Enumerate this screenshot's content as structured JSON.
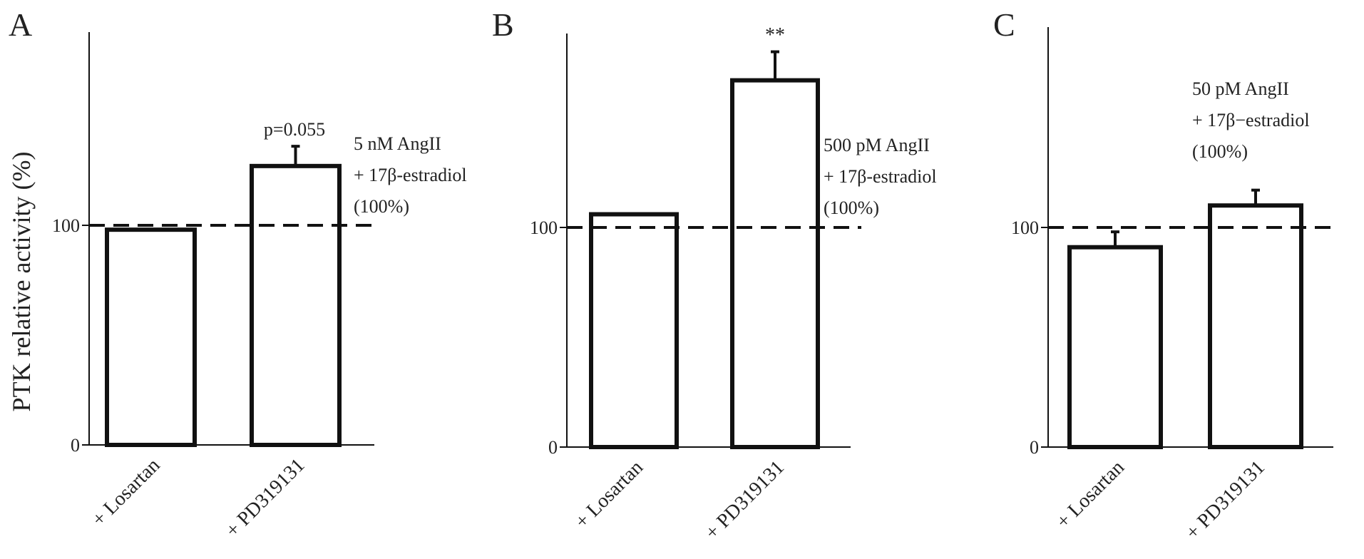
{
  "figure": {
    "ylabel": "PTK relative activity (%)",
    "reference_style": "dashed"
  },
  "chart_data": [
    {
      "panel": "A",
      "type": "bar",
      "categories": [
        "+ Losartan",
        "+ PD319131"
      ],
      "values": [
        98,
        127
      ],
      "error": [
        0,
        9
      ],
      "significance": [
        "",
        "p=0.055"
      ],
      "reference_line": 100,
      "annotation": [
        "5 nM AngII",
        "+ 17β-estradiol",
        "(100%)"
      ],
      "yticks": [
        0,
        100
      ],
      "ylim": [
        0,
        190
      ],
      "ylabel": "PTK relative activity (%)"
    },
    {
      "panel": "B",
      "type": "bar",
      "categories": [
        "+ Losartan",
        "+ PD319131"
      ],
      "values": [
        106,
        167
      ],
      "error": [
        0,
        13
      ],
      "significance": [
        "",
        "**"
      ],
      "reference_line": 100,
      "annotation": [
        "500 pM AngII",
        "+ 17β-estradiol",
        "(100%)"
      ],
      "yticks": [
        0,
        100
      ],
      "ylim": [
        0,
        190
      ]
    },
    {
      "panel": "C",
      "type": "bar",
      "categories": [
        "+ Losartan",
        "+ PD319131"
      ],
      "values": [
        91,
        110
      ],
      "error": [
        7,
        7
      ],
      "significance": [
        "",
        ""
      ],
      "reference_line": 100,
      "annotation": [
        "50 pM AngII",
        "+ 17β−estradiol",
        "(100%)"
      ],
      "yticks": [
        0,
        100
      ],
      "ylim": [
        0,
        190
      ]
    }
  ]
}
